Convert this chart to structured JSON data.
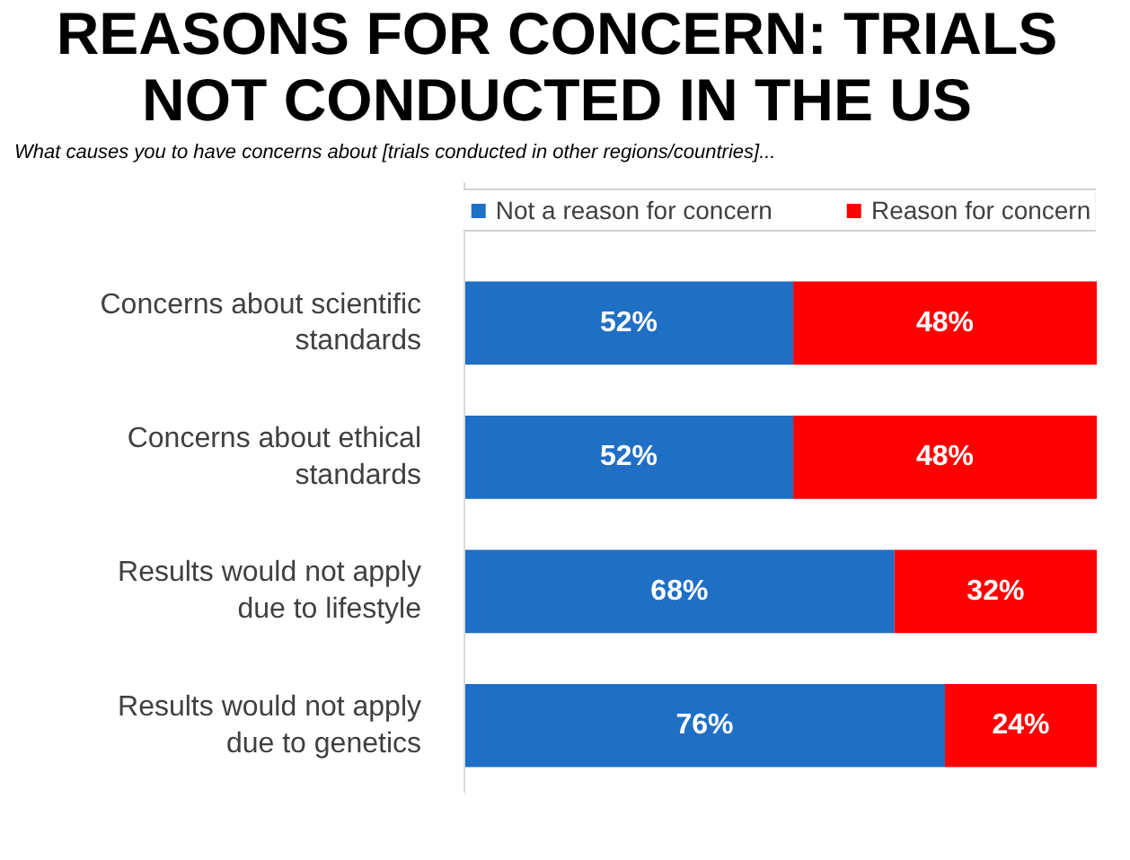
{
  "chart_data": {
    "type": "bar",
    "orientation": "horizontal",
    "stacked": true,
    "title": "REASONS FOR CONCERN: TRIALS NOT CONDUCTED IN THE US",
    "subtitle": "What causes you to have concerns about [trials conducted in other regions/countries]...",
    "categories": [
      "Concerns about scientific standards",
      "Concerns about ethical standards",
      "Results would not apply due to lifestyle",
      "Results would not apply due to genetics"
    ],
    "series": [
      {
        "name": "Not a reason for concern",
        "color": "#1f6fc5",
        "values": [
          52,
          52,
          68,
          76
        ],
        "value_labels": [
          "52%",
          "52%",
          "68%",
          "76%"
        ]
      },
      {
        "name": "Reason for concern",
        "color": "#ff0000",
        "values": [
          48,
          48,
          32,
          24
        ],
        "value_labels": [
          "48%",
          "48%",
          "32%",
          "24%"
        ]
      }
    ],
    "tick_labels": "y",
    "legend": "top"
  }
}
